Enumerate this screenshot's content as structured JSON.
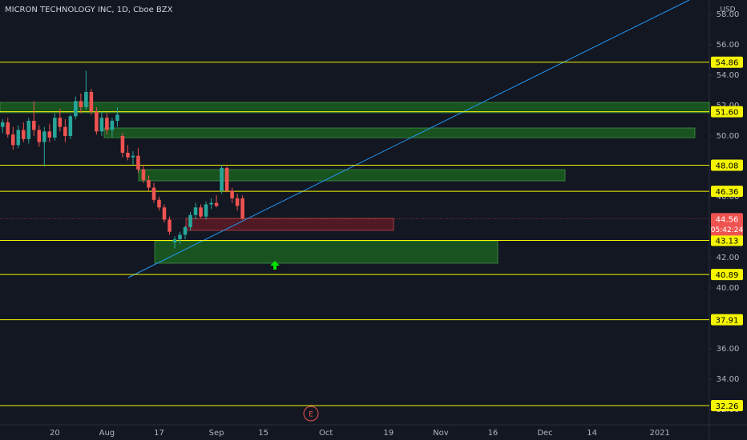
{
  "chart_data": {
    "type": "candlestick",
    "title": "MICRON TECHNOLOGY INC, 1D, Cboe BZX",
    "currency": "USD",
    "categories": [
      null,
      null,
      null,
      null,
      null,
      null,
      null,
      null,
      null,
      null,
      "20",
      null,
      null,
      null,
      null,
      null,
      null,
      null,
      null,
      null,
      "Aug",
      null,
      null,
      null,
      null,
      null,
      null,
      null,
      null,
      null,
      "17",
      null,
      null,
      null,
      null,
      null,
      null,
      null,
      null,
      null,
      null,
      "Sep",
      null,
      null,
      null,
      null,
      null,
      null,
      null,
      null,
      "15",
      null,
      null,
      null,
      null,
      null,
      null,
      null,
      null,
      null,
      null,
      null,
      "Oct",
      null,
      null,
      null,
      null,
      null,
      null,
      null,
      null,
      null,
      null,
      null,
      "19",
      null,
      null,
      null,
      null,
      null,
      null,
      null,
      null,
      null,
      "Nov",
      null,
      null,
      null,
      null,
      null,
      null,
      null,
      null,
      null,
      "16",
      null,
      null,
      null,
      null,
      null,
      null,
      null,
      null,
      null,
      "Dec",
      null,
      null,
      null,
      null,
      null,
      null,
      null,
      null,
      "14",
      null,
      null,
      null,
      null,
      null,
      null,
      null,
      null,
      null,
      null,
      null,
      null,
      "2021",
      null,
      null,
      null,
      null,
      null,
      null,
      null,
      null,
      null
    ],
    "open": [
      50.6,
      50.9,
      50.1,
      49.4,
      50.4,
      49.8,
      51.0,
      50.4,
      49.6,
      50.3,
      49.9,
      51.2,
      50.6,
      50.0,
      51.3,
      52.3,
      51.9,
      52.9,
      51.6,
      50.3,
      51.2,
      50.4,
      51.0,
      50.0,
      48.9,
      48.6,
      48.7,
      47.8,
      47.1,
      46.6,
      45.8,
      45.3,
      44.5,
      43.0,
      43.2,
      43.5,
      44.0,
      44.8,
      45.3,
      44.7,
      45.5,
      45.6,
      46.4,
      47.9,
      46.4,
      45.9,
      45.9,
      null,
      null,
      null,
      null,
      null,
      null,
      null,
      null,
      null,
      null,
      null,
      null,
      null,
      null,
      null,
      null,
      null,
      null,
      null,
      null,
      null,
      null,
      null,
      null,
      null,
      null,
      null,
      null,
      null,
      null,
      null,
      null,
      null,
      null,
      null,
      null,
      null,
      null,
      null,
      null,
      null,
      null,
      null,
      null,
      null,
      null,
      null,
      null,
      null,
      null,
      null,
      null,
      null,
      null,
      null,
      null,
      null,
      null,
      null,
      null,
      null,
      null,
      null,
      null,
      null,
      null,
      null,
      null,
      null,
      null,
      null,
      null,
      null,
      null,
      null,
      null,
      null,
      null,
      null,
      null,
      null,
      null,
      null,
      null,
      null,
      null,
      null,
      null,
      null
    ],
    "high": [
      51.1,
      51.2,
      50.6,
      50.7,
      50.9,
      51.2,
      52.3,
      50.7,
      50.6,
      50.8,
      51.5,
      51.8,
      51.1,
      51.4,
      52.6,
      52.8,
      54.3,
      53.1,
      51.9,
      51.6,
      51.5,
      51.2,
      51.9,
      50.2,
      49.4,
      49.0,
      49.2,
      48.1,
      47.4,
      46.9,
      46.0,
      45.5,
      44.7,
      43.4,
      43.7,
      44.1,
      45.0,
      45.6,
      45.5,
      45.7,
      45.9,
      46.1,
      48.1,
      48.0,
      46.6,
      46.2,
      46.1,
      null,
      null,
      null,
      null,
      null,
      null,
      null,
      null,
      null,
      null,
      null,
      null,
      null,
      null,
      null,
      null,
      null,
      null,
      null,
      null,
      null,
      null,
      null,
      null,
      null,
      null,
      null,
      null,
      null,
      null,
      null,
      null,
      null,
      null,
      null,
      null,
      null,
      null,
      null,
      null,
      null,
      null,
      null,
      null,
      null,
      null,
      null,
      null,
      null,
      null,
      null,
      null,
      null,
      null,
      null,
      null,
      null,
      null,
      null,
      null,
      null,
      null,
      null,
      null,
      null,
      null,
      null,
      null,
      null,
      null,
      null,
      null,
      null,
      null,
      null,
      null,
      null,
      null,
      null,
      null,
      null,
      null,
      null,
      null,
      null,
      null,
      null,
      null,
      null
    ],
    "low": [
      50.2,
      49.9,
      49.1,
      49.2,
      49.6,
      49.5,
      50.0,
      49.3,
      48.0,
      49.6,
      49.7,
      50.3,
      49.6,
      49.8,
      51.1,
      51.5,
      51.7,
      51.4,
      50.1,
      50.0,
      50.1,
      49.9,
      50.6,
      48.6,
      48.4,
      48.1,
      47.6,
      46.9,
      46.4,
      45.6,
      45.1,
      44.3,
      43.5,
      42.6,
      42.9,
      43.2,
      43.8,
      44.5,
      44.6,
      44.5,
      45.2,
      45.3,
      46.2,
      46.3,
      45.6,
      45.1,
      44.5,
      null,
      null,
      null,
      null,
      null,
      null,
      null,
      null,
      null,
      null,
      null,
      null,
      null,
      null,
      null,
      null,
      null,
      null,
      null,
      null,
      null,
      null,
      null,
      null,
      null,
      null,
      null,
      null,
      null,
      null,
      null,
      null,
      null,
      null,
      null,
      null,
      null,
      null,
      null,
      null,
      null,
      null,
      null,
      null,
      null,
      null,
      null,
      null,
      null,
      null,
      null,
      null,
      null,
      null,
      null,
      null,
      null,
      null,
      null,
      null,
      null,
      null,
      null,
      null,
      null,
      null,
      null,
      null,
      null,
      null,
      null,
      null,
      null,
      null,
      null,
      null,
      null,
      null,
      null,
      null,
      null,
      null,
      null,
      null,
      null,
      null,
      null,
      null,
      null
    ],
    "close": [
      50.9,
      50.1,
      49.4,
      50.4,
      49.8,
      51.0,
      50.4,
      49.6,
      50.3,
      49.9,
      51.2,
      50.6,
      50.0,
      51.3,
      52.3,
      51.9,
      52.9,
      51.6,
      50.3,
      51.2,
      50.4,
      51.0,
      51.4,
      48.9,
      48.6,
      48.7,
      47.8,
      47.1,
      46.6,
      45.8,
      45.3,
      44.5,
      43.7,
      43.2,
      43.5,
      44.0,
      44.8,
      45.3,
      44.7,
      45.5,
      45.6,
      45.4,
      47.9,
      46.4,
      45.9,
      45.4,
      44.56,
      null,
      null,
      null,
      null,
      null,
      null,
      null,
      null,
      null,
      null,
      null,
      null,
      null,
      null,
      null,
      null,
      null,
      null,
      null,
      null,
      null,
      null,
      null,
      null,
      null,
      null,
      null,
      null,
      null,
      null,
      null,
      null,
      null,
      null,
      null,
      null,
      null,
      null,
      null,
      null,
      null,
      null,
      null,
      null,
      null,
      null,
      null,
      null,
      null,
      null,
      null,
      null,
      null,
      null,
      null,
      null,
      null,
      null,
      null,
      null,
      null,
      null,
      null,
      null,
      null,
      null,
      null,
      null,
      null,
      null,
      null,
      null,
      null,
      null,
      null,
      null,
      null,
      null,
      null,
      null,
      null,
      null,
      null,
      null,
      null,
      null,
      null,
      null,
      null
    ],
    "up_color": "#26a69a",
    "down_color": "#ef5350",
    "ylim": [
      31.05,
      58.95
    ],
    "yticks": [
      {
        "value": 58,
        "label": "58.00"
      },
      {
        "value": 56,
        "label": "56.00"
      },
      {
        "value": 54,
        "label": "54.00"
      },
      {
        "value": 52,
        "label": "52.00"
      },
      {
        "value": 50,
        "label": "50.00"
      },
      {
        "value": 48,
        "label": "48.00"
      },
      {
        "value": 46,
        "label": "46.00"
      },
      {
        "value": 44,
        "label": "44.00"
      },
      {
        "value": 42,
        "label": "42.00"
      },
      {
        "value": 40,
        "label": "40.00"
      },
      {
        "value": 38,
        "label": "38.00"
      },
      {
        "value": 36,
        "label": "36.00"
      },
      {
        "value": 34,
        "label": "34.00"
      },
      {
        "value": 32,
        "label": "32.00"
      }
    ],
    "levels": [
      54.86,
      {
        "value": 51.6,
        "label": "51.60"
      },
      48.08,
      46.36,
      43.13,
      40.89,
      37.91,
      32.26
    ],
    "level_color": "#f5f500",
    "zones": [
      {
        "top": 52.21,
        "bottom": 51.53,
        "color": "#1b5e20"
      },
      {
        "top": 50.53,
        "bottom": 49.89,
        "color": "#1b5e20"
      },
      {
        "top": 47.79,
        "bottom": 47.05,
        "color": "#1b5e20"
      },
      {
        "top": 43.1,
        "bottom": 41.63,
        "color": "#1b5e20"
      },
      {
        "top": 44.58,
        "bottom": 43.79,
        "color": "#5c1a24"
      }
    ],
    "last_price": 44.56,
    "countdown": "05:42:24"
  }
}
